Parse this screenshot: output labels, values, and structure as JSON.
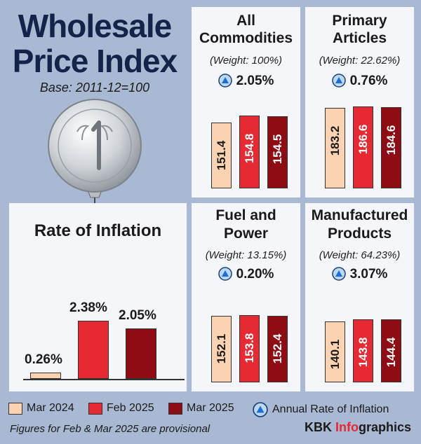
{
  "header": {
    "title_line1": "Wholesale",
    "title_line2": "Price Index",
    "base": "Base: 2011-12=100"
  },
  "inflation_panel": {
    "title": "Rate of Inflation",
    "values": [
      "0.26%",
      "2.38%",
      "2.05%"
    ]
  },
  "categories": [
    {
      "title1": "All",
      "title2": "Commodities",
      "weight": "(Weight: 100%)",
      "rate": "2.05%",
      "values": [
        "151.4",
        "154.8",
        "154.5"
      ]
    },
    {
      "title1": "Primary",
      "title2": "Articles",
      "weight": "(Weight: 22.62%)",
      "rate": "0.76%",
      "values": [
        "183.2",
        "186.6",
        "184.6"
      ]
    },
    {
      "title1": "Fuel and",
      "title2": "Power",
      "weight": "(Weight: 13.15%)",
      "rate": "0.20%",
      "values": [
        "152.1",
        "153.8",
        "152.4"
      ]
    },
    {
      "title1": "Manufactured",
      "title2": "Products",
      "weight": "(Weight: 64.23%)",
      "rate": "3.07%",
      "values": [
        "140.1",
        "143.8",
        "144.4"
      ]
    }
  ],
  "legend": {
    "mar2024": "Mar 2024",
    "feb2025": "Feb 2025",
    "mar2025": "Mar 2025",
    "rate": "Annual Rate of Inflation"
  },
  "footnote": "Figures for Feb & Mar 2025 are provisional",
  "brand": {
    "part1": "KBK ",
    "part2": "Info",
    "part3": "graphics"
  },
  "colors": {
    "mar2024": "#fbd3b2",
    "feb2025": "#e52a33",
    "mar2025": "#8e0d14",
    "background": "#a9b9d3",
    "panel": "#f5f6fa",
    "title": "#13234a"
  },
  "icons": {
    "rate_marker": "up-triangle-icon",
    "illustration": "rupee-coin-balloon"
  },
  "chart_data": [
    {
      "type": "bar",
      "title": "Rate of Inflation",
      "categories": [
        "Mar 2024",
        "Feb 2025",
        "Mar 2025"
      ],
      "values": [
        0.26,
        2.38,
        2.05
      ],
      "unit": "%"
    },
    {
      "type": "bar",
      "title": "All Commodities",
      "weight": "100%",
      "annual_rate": 2.05,
      "categories": [
        "Mar 2024",
        "Feb 2025",
        "Mar 2025"
      ],
      "values": [
        151.4,
        154.8,
        154.5
      ]
    },
    {
      "type": "bar",
      "title": "Primary Articles",
      "weight": "22.62%",
      "annual_rate": 0.76,
      "categories": [
        "Mar 2024",
        "Feb 2025",
        "Mar 2025"
      ],
      "values": [
        183.2,
        186.6,
        184.6
      ]
    },
    {
      "type": "bar",
      "title": "Fuel and Power",
      "weight": "13.15%",
      "annual_rate": 0.2,
      "categories": [
        "Mar 2024",
        "Feb 2025",
        "Mar 2025"
      ],
      "values": [
        152.1,
        153.8,
        152.4
      ]
    },
    {
      "type": "bar",
      "title": "Manufactured Products",
      "weight": "64.23%",
      "annual_rate": 3.07,
      "categories": [
        "Mar 2024",
        "Feb 2025",
        "Mar 2025"
      ],
      "values": [
        140.1,
        143.8,
        144.4
      ]
    }
  ]
}
